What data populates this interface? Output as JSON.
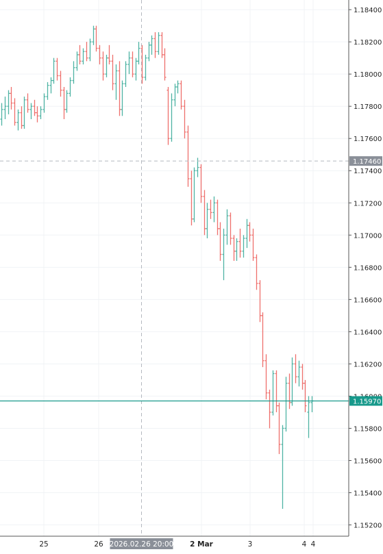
{
  "colors": {
    "up": "#4fb3a3",
    "down": "#ef6f6c",
    "grid": "#f0f3f6",
    "axis_text": "#222222",
    "last_price_line": "#17998b",
    "crosshair": "#b4b8bf",
    "crosshair_label_bg": "#8a8f98"
  },
  "axis": {
    "y_ticks": [
      "1.15200",
      "1.15400",
      "1.15600",
      "1.15800",
      "1.16000",
      "1.16200",
      "1.16400",
      "1.16600",
      "1.16800",
      "1.17000",
      "1.17200",
      "1.17400",
      "1.17600",
      "1.17800",
      "1.18000",
      "1.18200",
      "1.18400"
    ],
    "x_labels": [
      "25",
      "26",
      "2 Mar",
      "3",
      "4",
      "4"
    ]
  },
  "crosshair": {
    "price_label": "1.17460",
    "time_label": "2026.02.26 20:00"
  },
  "last_price": {
    "label": "1.15970"
  },
  "chart_data": {
    "type": "ohlc",
    "ylim": [
      1.1513,
      1.1846
    ],
    "grid": true,
    "crosshair_price": 1.1746,
    "last_price": 1.1597,
    "bars": [
      [
        1.1772,
        1.1782,
        1.1768,
        1.1778
      ],
      [
        1.1778,
        1.1786,
        1.1772,
        1.178
      ],
      [
        1.178,
        1.179,
        1.1775,
        1.1788
      ],
      [
        1.1788,
        1.1792,
        1.1778,
        1.1782
      ],
      [
        1.1782,
        1.1785,
        1.1768,
        1.177
      ],
      [
        1.177,
        1.1778,
        1.1765,
        1.1776
      ],
      [
        1.1776,
        1.178,
        1.1766,
        1.1768
      ],
      [
        1.1768,
        1.1786,
        1.1766,
        1.1784
      ],
      [
        1.1784,
        1.1788,
        1.1776,
        1.1778
      ],
      [
        1.1778,
        1.1782,
        1.1772,
        1.178
      ],
      [
        1.178,
        1.1784,
        1.1774,
        1.1776
      ],
      [
        1.1776,
        1.178,
        1.177,
        1.1774
      ],
      [
        1.1774,
        1.178,
        1.1772,
        1.1778
      ],
      [
        1.1778,
        1.1788,
        1.1776,
        1.1786
      ],
      [
        1.1786,
        1.1795,
        1.1784,
        1.1793
      ],
      [
        1.1793,
        1.1798,
        1.1788,
        1.1796
      ],
      [
        1.1796,
        1.181,
        1.1794,
        1.1808
      ],
      [
        1.1808,
        1.181,
        1.1796,
        1.1799
      ],
      [
        1.1799,
        1.1802,
        1.1786,
        1.179
      ],
      [
        1.179,
        1.1792,
        1.1772,
        1.1778
      ],
      [
        1.1778,
        1.179,
        1.1776,
        1.1788
      ],
      [
        1.1788,
        1.1798,
        1.1786,
        1.1796
      ],
      [
        1.1796,
        1.1808,
        1.1794,
        1.1804
      ],
      [
        1.1804,
        1.1814,
        1.1802,
        1.1812
      ],
      [
        1.1812,
        1.1818,
        1.1806,
        1.1808
      ],
      [
        1.1808,
        1.1816,
        1.1806,
        1.1814
      ],
      [
        1.1814,
        1.182,
        1.1808,
        1.181
      ],
      [
        1.181,
        1.1822,
        1.1808,
        1.182
      ],
      [
        1.182,
        1.183,
        1.1818,
        1.1828
      ],
      [
        1.1828,
        1.183,
        1.1814,
        1.1816
      ],
      [
        1.1816,
        1.1818,
        1.1806,
        1.181
      ],
      [
        1.181,
        1.1814,
        1.1796,
        1.18
      ],
      [
        1.18,
        1.1812,
        1.1798,
        1.181
      ],
      [
        1.181,
        1.1818,
        1.1806,
        1.1808
      ],
      [
        1.1808,
        1.1812,
        1.179,
        1.1794
      ],
      [
        1.1794,
        1.1806,
        1.1784,
        1.1802
      ],
      [
        1.1802,
        1.1808,
        1.1774,
        1.1778
      ],
      [
        1.1778,
        1.1796,
        1.1774,
        1.1794
      ],
      [
        1.1794,
        1.1808,
        1.1792,
        1.1806
      ],
      [
        1.1806,
        1.1814,
        1.18,
        1.181
      ],
      [
        1.181,
        1.1814,
        1.1798,
        1.18
      ],
      [
        1.18,
        1.181,
        1.1796,
        1.1808
      ],
      [
        1.1808,
        1.182,
        1.1806,
        1.1816
      ],
      [
        1.1816,
        1.1818,
        1.1794,
        1.1798
      ],
      [
        1.1798,
        1.1812,
        1.1796,
        1.181
      ],
      [
        1.181,
        1.182,
        1.1808,
        1.1818
      ],
      [
        1.1818,
        1.1824,
        1.1812,
        1.1822
      ],
      [
        1.1822,
        1.1826,
        1.181,
        1.1814
      ],
      [
        1.1814,
        1.1826,
        1.1812,
        1.1824
      ],
      [
        1.1824,
        1.1826,
        1.181,
        1.1812
      ],
      [
        1.1812,
        1.1816,
        1.1796,
        1.1798
      ],
      [
        1.179,
        1.1792,
        1.1756,
        1.176
      ],
      [
        1.176,
        1.1788,
        1.1758,
        1.1784
      ],
      [
        1.1784,
        1.1794,
        1.178,
        1.1792
      ],
      [
        1.1792,
        1.1796,
        1.1788,
        1.1794
      ],
      [
        1.1794,
        1.1796,
        1.1778,
        1.178
      ],
      [
        1.178,
        1.1784,
        1.176,
        1.1764
      ],
      [
        1.1764,
        1.1768,
        1.173,
        1.1735
      ],
      [
        1.1735,
        1.174,
        1.1706,
        1.171
      ],
      [
        1.171,
        1.1742,
        1.1708,
        1.174
      ],
      [
        1.174,
        1.1748,
        1.1736,
        1.1742
      ],
      [
        1.1742,
        1.1744,
        1.172,
        1.1724
      ],
      [
        1.1724,
        1.1728,
        1.17,
        1.1704
      ],
      [
        1.1704,
        1.172,
        1.1698,
        1.1716
      ],
      [
        1.1716,
        1.1722,
        1.171,
        1.1714
      ],
      [
        1.1714,
        1.1724,
        1.1708,
        1.172
      ],
      [
        1.172,
        1.1722,
        1.17,
        1.1704
      ],
      [
        1.1704,
        1.1708,
        1.1684,
        1.1688
      ],
      [
        1.1688,
        1.1704,
        1.1672,
        1.17
      ],
      [
        1.17,
        1.1716,
        1.1694,
        1.1712
      ],
      [
        1.1712,
        1.1714,
        1.1694,
        1.1698
      ],
      [
        1.1698,
        1.17,
        1.1684,
        1.169
      ],
      [
        1.169,
        1.1698,
        1.1684,
        1.1696
      ],
      [
        1.1696,
        1.1704,
        1.1686,
        1.169
      ],
      [
        1.169,
        1.17,
        1.1686,
        1.1698
      ],
      [
        1.1698,
        1.171,
        1.1692,
        1.1706
      ],
      [
        1.1706,
        1.1708,
        1.1696,
        1.17
      ],
      [
        1.17,
        1.1704,
        1.1684,
        1.1686
      ],
      [
        1.1686,
        1.1688,
        1.1666,
        1.167
      ],
      [
        1.167,
        1.1672,
        1.1646,
        1.165
      ],
      [
        1.165,
        1.1652,
        1.1618,
        1.1622
      ],
      [
        1.1622,
        1.1626,
        1.1598,
        1.1602
      ],
      [
        1.1602,
        1.1604,
        1.158,
        1.159
      ],
      [
        1.159,
        1.1616,
        1.1588,
        1.1614
      ],
      [
        1.1614,
        1.1616,
        1.159,
        1.1594
      ],
      [
        1.1594,
        1.1596,
        1.1564,
        1.157
      ],
      [
        1.157,
        1.1582,
        1.153,
        1.158
      ],
      [
        1.158,
        1.1612,
        1.1578,
        1.1608
      ],
      [
        1.1608,
        1.1614,
        1.1592,
        1.1596
      ],
      [
        1.1596,
        1.1624,
        1.1594,
        1.162
      ],
      [
        1.162,
        1.1626,
        1.1608,
        1.1612
      ],
      [
        1.1612,
        1.1622,
        1.1606,
        1.1618
      ],
      [
        1.1618,
        1.162,
        1.1604,
        1.1608
      ],
      [
        1.1608,
        1.161,
        1.159,
        1.1594
      ],
      [
        1.159,
        1.16,
        1.1574,
        1.1596
      ],
      [
        1.1596,
        1.16,
        1.159,
        1.1597
      ]
    ]
  }
}
